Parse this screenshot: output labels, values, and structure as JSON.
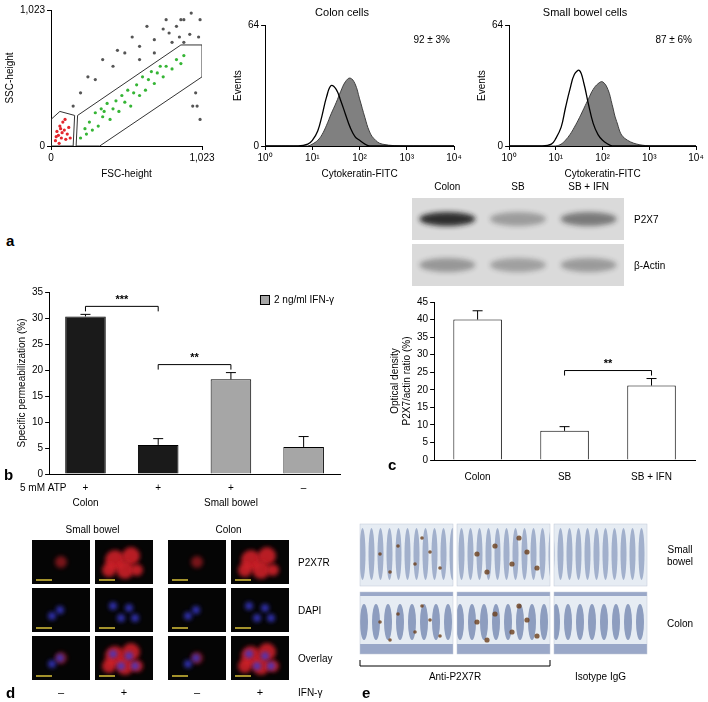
{
  "panel_labels": [
    "a",
    "b",
    "c",
    "d",
    "e"
  ],
  "chart_data": [
    {
      "type": "scatter",
      "x_label": "FSC-height",
      "y_label": "SSC-height",
      "xlim": [
        0,
        1023
      ],
      "ylim": [
        0,
        1023
      ],
      "xticks": [
        0,
        {
          "value": 1023,
          "label": "1,023"
        }
      ],
      "yticks": [
        0,
        {
          "value": 1023,
          "label": "1,023"
        }
      ],
      "grid": false,
      "series": [
        {
          "color": "#e3262d",
          "x": [
            30,
            50,
            70,
            90,
            60,
            100,
            40,
            80,
            110,
            55,
            120,
            95,
            35,
            75,
            130,
            65
          ],
          "values": [
            40,
            80,
            60,
            120,
            150,
            50,
            110,
            180,
            90,
            20,
            140,
            200,
            70,
            100,
            60,
            130
          ]
        },
        {
          "color": "#35b535",
          "x": [
            200,
            240,
            280,
            260,
            320,
            350,
            300,
            400,
            420,
            380,
            460,
            500,
            480,
            540,
            560,
            600,
            580,
            640,
            660,
            700,
            720,
            760,
            780,
            820,
            850,
            880,
            440,
            520,
            620,
            740,
            340,
            900,
            230,
            360,
            680
          ],
          "values": [
            60,
            90,
            120,
            180,
            150,
            220,
            250,
            200,
            280,
            320,
            260,
            330,
            380,
            300,
            400,
            380,
            460,
            420,
            500,
            470,
            550,
            520,
            600,
            580,
            650,
            620,
            340,
            420,
            520,
            600,
            280,
            680,
            130,
            260,
            560
          ]
        },
        {
          "color": "#555555",
          "x": [
            150,
            200,
            300,
            420,
            500,
            600,
            700,
            800,
            850,
            900,
            950,
            960,
            1000,
            990,
            900,
            820,
            760,
            650,
            550,
            450,
            350,
            250,
            1010,
            980,
            870,
            940,
            700,
            600,
            1010,
            780,
            880
          ],
          "values": [
            300,
            400,
            500,
            600,
            700,
            750,
            800,
            850,
            900,
            950,
            1000,
            300,
            820,
            300,
            780,
            780,
            880,
            900,
            820,
            720,
            650,
            520,
            200,
            400,
            820,
            840,
            700,
            650,
            950,
            950,
            950
          ]
        }
      ],
      "gates": [
        [
          [
            170,
            0
          ],
          [
            330,
            0
          ],
          [
            1023,
            520
          ],
          [
            1023,
            760
          ],
          [
            880,
            760
          ],
          [
            180,
            230
          ]
        ],
        [
          [
            0,
            0
          ],
          [
            150,
            0
          ],
          [
            160,
            230
          ],
          [
            60,
            260
          ],
          [
            0,
            200
          ]
        ]
      ]
    },
    {
      "type": "line",
      "title": "Colon cells",
      "x_label": "Cytokeratin-FITC",
      "y_label": "Events",
      "log": "x",
      "xlim": [
        1,
        10000
      ],
      "xticks": [
        {
          "value": 1,
          "label": "10⁰"
        },
        {
          "value": 10,
          "label": "10¹"
        },
        {
          "value": 100,
          "label": "10²"
        },
        {
          "value": 1000,
          "label": "10³"
        },
        {
          "value": 10000,
          "label": "10⁴"
        }
      ],
      "ylim": [
        0,
        64
      ],
      "yticks": [
        0,
        64
      ],
      "grid": false,
      "x": [
        1,
        5,
        8,
        10,
        13,
        16,
        20,
        25,
        32,
        40,
        50,
        63,
        80,
        100,
        130,
        160,
        200,
        300,
        1000,
        10000
      ],
      "series": [
        {
          "type": "area",
          "color": "#808080",
          "values": [
            0,
            0,
            0,
            1,
            3,
            6,
            11,
            17,
            23,
            29,
            34,
            36,
            33,
            25,
            15,
            8,
            4,
            1,
            0,
            0
          ]
        },
        {
          "type": "line",
          "color": "#000000",
          "values": [
            0,
            0,
            1,
            3,
            8,
            16,
            26,
            32,
            30,
            24,
            17,
            10,
            5,
            3,
            1,
            0,
            0,
            0,
            0,
            0
          ]
        }
      ],
      "annotations": [
        {
          "text": "92 ± 3%"
        }
      ]
    },
    {
      "type": "line",
      "title": "Small bowel cells",
      "x_label": "Cytokeratin-FITC",
      "y_label": "Events",
      "log": "x",
      "xlim": [
        1,
        10000
      ],
      "xticks": [
        {
          "value": 1,
          "label": "10⁰"
        },
        {
          "value": 10,
          "label": "10¹"
        },
        {
          "value": 100,
          "label": "10²"
        },
        {
          "value": 1000,
          "label": "10³"
        },
        {
          "value": 10000,
          "label": "10⁴"
        }
      ],
      "ylim": [
        0,
        64
      ],
      "yticks": [
        0,
        64
      ],
      "grid": false,
      "x": [
        1,
        5,
        8,
        10,
        13,
        16,
        20,
        25,
        32,
        40,
        50,
        63,
        80,
        100,
        130,
        160,
        200,
        300,
        1000,
        10000
      ],
      "series": [
        {
          "type": "area",
          "color": "#808080",
          "values": [
            0,
            0,
            0,
            0,
            1,
            3,
            6,
            10,
            15,
            20,
            25,
            30,
            33,
            34,
            30,
            22,
            13,
            4,
            0,
            0
          ]
        },
        {
          "type": "line",
          "color": "#000000",
          "values": [
            0,
            0,
            1,
            4,
            10,
            20,
            30,
            38,
            40,
            33,
            22,
            12,
            6,
            3,
            1,
            0,
            0,
            0,
            0,
            0
          ]
        }
      ],
      "annotations": [
        {
          "text": "87 ± 6%"
        }
      ]
    },
    {
      "type": "bar",
      "y_label": "Specific permeabilization (%)",
      "ylim": [
        0,
        35
      ],
      "yticks": [
        0,
        5,
        10,
        15,
        20,
        25,
        30,
        35
      ],
      "grid": false,
      "categories": [
        null,
        null,
        null,
        null
      ],
      "values": [
        30.3,
        5.6,
        18.2,
        5.2
      ],
      "errors": [
        0.4,
        1.2,
        1.3,
        2.0
      ],
      "colors": [
        "#1a1a1a",
        "#1a1a1a",
        "#a6a6a6",
        "#a6a6a6"
      ],
      "legend": "upper right",
      "legend_entries": [
        {
          "name": "2 ng/ml IFN-γ",
          "color": "#a6a6a6"
        }
      ],
      "x_rows": [
        {
          "label": "5 mM ATP",
          "values": [
            "+",
            "+",
            "+",
            "–"
          ]
        }
      ],
      "groups": [
        {
          "label": "Colon",
          "span": 1
        },
        {
          "label": "Small bowel",
          "span": 3
        }
      ],
      "annotations": [
        {
          "text": "***",
          "between": [
            0,
            1
          ]
        },
        {
          "text": "**",
          "between": [
            1,
            2
          ]
        }
      ]
    },
    {
      "type": "bar",
      "y_label": [
        "Optical density",
        "P2X7/actin ratio (%)"
      ],
      "ylim": [
        0,
        45
      ],
      "yticks": [
        0,
        5,
        10,
        15,
        20,
        25,
        30,
        35,
        40,
        45
      ],
      "grid": false,
      "categories": [
        "Colon",
        "SB",
        "SB + IFN"
      ],
      "values": [
        40,
        8.3,
        21.2
      ],
      "errors": [
        2.5,
        1.2,
        2.0
      ],
      "color": "#ffffff",
      "annotations": [
        {
          "text": "**",
          "between": [
            1,
            2
          ]
        }
      ]
    }
  ],
  "blot": {
    "lanes": [
      "Colon",
      "SB",
      "SB + IFN"
    ],
    "bands": [
      "P2X7",
      "β-Actin"
    ]
  },
  "microscopy": {
    "groups": [
      "Small bowel",
      "Colon"
    ],
    "rows": [
      "P2X7R",
      "DAPI",
      "Overlay"
    ],
    "conditions": [
      "–",
      "+",
      "–",
      "+"
    ],
    "condition_label": "IFN-γ"
  },
  "histology": {
    "rows": [
      "Small bowel",
      "Colon"
    ],
    "column_groups": [
      {
        "label": "Anti-P2X7R",
        "span": 2
      },
      {
        "label": "Isotype IgG",
        "span": 1
      }
    ]
  }
}
